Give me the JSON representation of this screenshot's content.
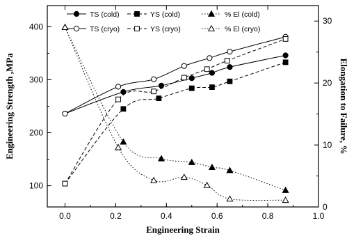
{
  "chart_data": {
    "type": "line",
    "xlabel": "Engineering Strain",
    "ylabel_left": "Engineering Strength ,MPa",
    "ylabel_right": "Elongation to Failure, %",
    "xlim": [
      -0.07,
      1.0
    ],
    "ylim_left": [
      60,
      440
    ],
    "ylim_right": [
      0,
      32.5
    ],
    "x_ticks": [
      "0.0",
      "0.2",
      "0.4",
      "0.6",
      "0.8",
      "1.0"
    ],
    "x_tick_values": [
      0.0,
      0.2,
      0.4,
      0.6,
      0.8,
      1.0
    ],
    "y_left_ticks": [
      "100",
      "200",
      "300",
      "400"
    ],
    "y_left_tick_values": [
      100,
      200,
      300,
      400
    ],
    "y_right_ticks": [
      "0",
      "10",
      "20",
      "30"
    ],
    "y_right_tick_values": [
      0,
      10,
      20,
      30
    ],
    "grid": false,
    "legend_position": "top",
    "series": [
      {
        "name": "TS (cold)",
        "axis": "left",
        "line": "solid",
        "marker": "circle-filled",
        "x": [
          0.0,
          0.23,
          0.38,
          0.5,
          0.58,
          0.65,
          0.87
        ],
        "y": [
          236,
          277,
          289,
          303,
          313,
          324,
          346
        ]
      },
      {
        "name": "TS (cryo)",
        "axis": "left",
        "line": "solid",
        "marker": "circle-open",
        "x": [
          0.0,
          0.21,
          0.35,
          0.47,
          0.57,
          0.65,
          0.87
        ],
        "y": [
          236,
          287,
          301,
          326,
          341,
          353,
          381
        ]
      },
      {
        "name": "YS (cold)",
        "axis": "left",
        "line": "dashed",
        "marker": "square-filled",
        "x": [
          0.0,
          0.23,
          0.37,
          0.5,
          0.58,
          0.65,
          0.87
        ],
        "y": [
          104,
          245,
          265,
          284,
          286,
          297,
          333
        ]
      },
      {
        "name": "YS (cryo)",
        "axis": "left",
        "line": "dashed",
        "marker": "square-open",
        "x": [
          0.0,
          0.21,
          0.35,
          0.47,
          0.56,
          0.64,
          0.87
        ],
        "y": [
          104,
          263,
          278,
          304,
          320,
          336,
          377
        ]
      },
      {
        "name": "% El (cold)",
        "axis": "right",
        "line": "dotted",
        "marker": "triangle-filled",
        "x": [
          0.0,
          0.23,
          0.38,
          0.5,
          0.58,
          0.65,
          0.87
        ],
        "y": [
          29,
          10.5,
          7.8,
          7.2,
          6.4,
          5.9,
          2.7
        ]
      },
      {
        "name": "% El (cryo)",
        "axis": "right",
        "line": "dotted",
        "marker": "triangle-open",
        "x": [
          0.0,
          0.21,
          0.35,
          0.47,
          0.56,
          0.65,
          0.87
        ],
        "y": [
          29,
          9.6,
          4.3,
          4.8,
          3.5,
          1.3,
          1.1
        ]
      }
    ]
  }
}
